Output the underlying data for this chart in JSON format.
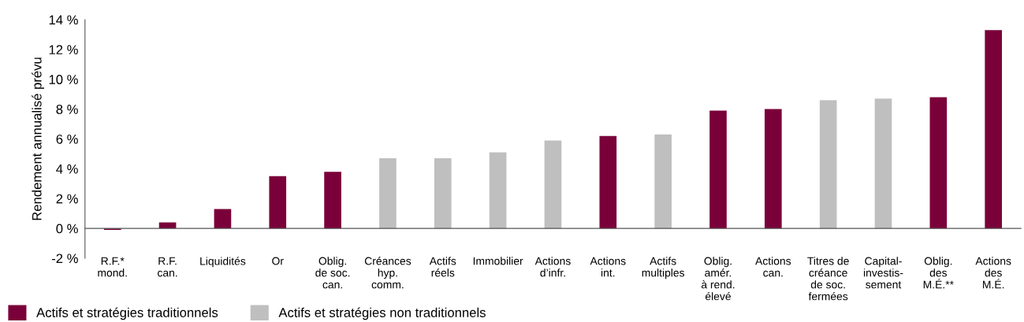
{
  "chart_data": {
    "type": "bar",
    "ylabel": "Rendement annualisé prévu",
    "categories": [
      "R.F.*\nmond.",
      "R.F.\ncan.",
      "Liquidités",
      "Or",
      "Oblig.\nde soc.\ncan.",
      "Créances\nhyp.\ncomm.",
      "Actifs\nréels",
      "Immobilier",
      "Actions\nd’infr.",
      "Actions\nint.",
      "Actifs\nmultiples",
      "Oblig.\namér.\nà rend.\nélevé",
      "Actions\ncan.",
      "Titres de\ncréance\nde soc.\nfermées",
      "Capital-\ninvestis-\nsement",
      "Oblig.\ndes\nM.É.**",
      "Actions\ndes\nM.É."
    ],
    "series": [
      {
        "name": "Actifs et stratégies traditionnels",
        "color": "#7a0039",
        "values": [
          -0.1,
          0.4,
          1.3,
          3.5,
          3.8,
          null,
          null,
          null,
          null,
          6.2,
          null,
          7.9,
          8.0,
          null,
          null,
          8.8,
          13.3
        ]
      },
      {
        "name": "Actifs et stratégies non traditionnels",
        "color": "#bfbfbf",
        "values": [
          null,
          null,
          null,
          null,
          null,
          4.7,
          4.7,
          5.1,
          5.9,
          null,
          6.3,
          null,
          null,
          8.6,
          8.7,
          null,
          null
        ]
      }
    ],
    "ylim": [
      -2,
      14
    ],
    "yticks": [
      {
        "value": -2,
        "label": "-2 %"
      },
      {
        "value": 0,
        "label": "0 %"
      },
      {
        "value": 2,
        "label": "2 %"
      },
      {
        "value": 4,
        "label": "4 %"
      },
      {
        "value": 6,
        "label": "6 %"
      },
      {
        "value": 8,
        "label": "8 %"
      },
      {
        "value": 10,
        "label": "10 %"
      },
      {
        "value": 12,
        "label": "12 %"
      },
      {
        "value": 14,
        "label": "14 %"
      }
    ],
    "grid": false,
    "legend": "bottom left"
  }
}
